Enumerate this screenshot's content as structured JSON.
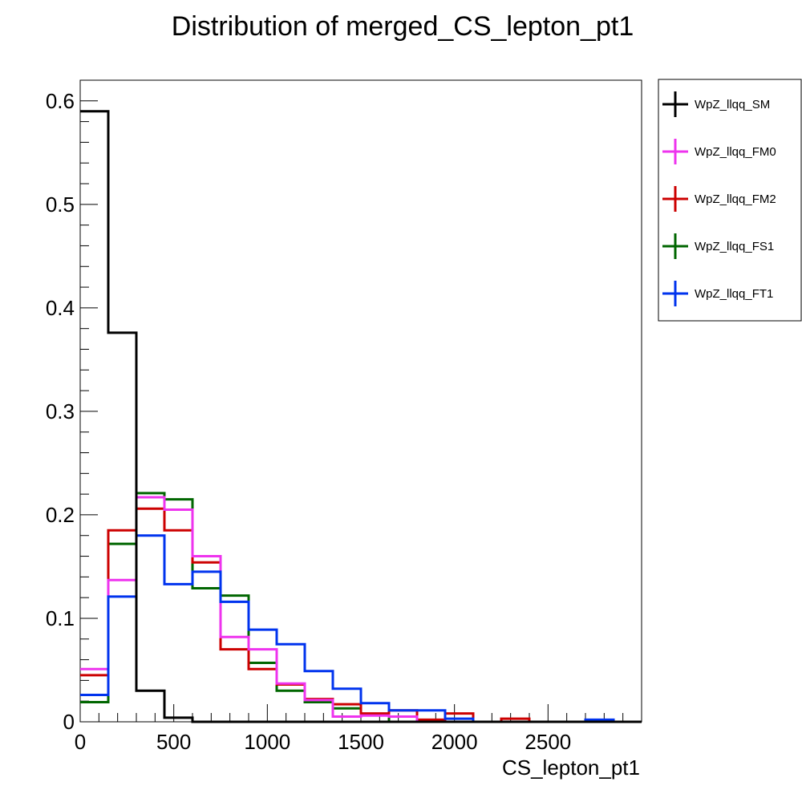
{
  "chart_data": {
    "type": "histogram-step",
    "title": "Distribution of merged_CS_lepton_pt1",
    "xlabel": "CS_lepton_pt1",
    "ylabel": "",
    "xlim": [
      0,
      3000
    ],
    "ylim": [
      0,
      0.62
    ],
    "bin_edges": [
      0,
      150,
      300,
      450,
      600,
      750,
      900,
      1050,
      1200,
      1350,
      1500,
      1650,
      1800,
      1950,
      2100,
      2250,
      2400,
      2550,
      2700,
      2850,
      3000
    ],
    "x_ticks": [
      0,
      500,
      1000,
      1500,
      2000,
      2500
    ],
    "x_tick_labels": [
      "0",
      "500",
      "1000",
      "1500",
      "2000",
      "2500"
    ],
    "y_ticks": [
      0,
      0.1,
      0.2,
      0.3,
      0.4,
      0.5,
      0.6
    ],
    "y_tick_labels": [
      "0",
      "0.1",
      "0.2",
      "0.3",
      "0.4",
      "0.5",
      "0.6"
    ],
    "grid": false,
    "legend_position": "right",
    "series": [
      {
        "name": "WpZ_llqq_SM",
        "color": "#000000",
        "values": [
          0.59,
          0.376,
          0.03,
          0.004,
          0.0,
          0.0,
          0.0,
          0.0,
          0.0,
          0.0,
          0.0,
          0.0,
          0.0,
          0.0,
          0.0,
          0.0,
          0.0,
          0.0,
          0.0,
          0.0
        ]
      },
      {
        "name": "WpZ_llqq_FM0",
        "color": "#ee33ee",
        "values": [
          0.051,
          0.137,
          0.217,
          0.205,
          0.16,
          0.082,
          0.07,
          0.037,
          0.021,
          0.005,
          0.006,
          0.005,
          0.0,
          0.0,
          0.0,
          0.0,
          0.0,
          0.0,
          0.0,
          0.0
        ]
      },
      {
        "name": "WpZ_llqq_FM2",
        "color": "#cc0000",
        "values": [
          0.045,
          0.185,
          0.206,
          0.185,
          0.154,
          0.07,
          0.051,
          0.036,
          0.022,
          0.017,
          0.008,
          0.011,
          0.002,
          0.008,
          0.0,
          0.003,
          0.0,
          0.0,
          0.0,
          0.0
        ]
      },
      {
        "name": "WpZ_llqq_FS1",
        "color": "#006600",
        "values": [
          0.019,
          0.172,
          0.221,
          0.215,
          0.129,
          0.122,
          0.057,
          0.03,
          0.019,
          0.013,
          0.007,
          0.0,
          0.0,
          0.0,
          0.0,
          0.0,
          0.0,
          0.0,
          0.0,
          0.0
        ]
      },
      {
        "name": "WpZ_llqq_FT1",
        "color": "#0033ee",
        "values": [
          0.026,
          0.121,
          0.18,
          0.133,
          0.145,
          0.116,
          0.089,
          0.075,
          0.049,
          0.032,
          0.018,
          0.011,
          0.011,
          0.003,
          0.0,
          0.0,
          0.0,
          0.0,
          0.002,
          0.0
        ]
      }
    ]
  }
}
